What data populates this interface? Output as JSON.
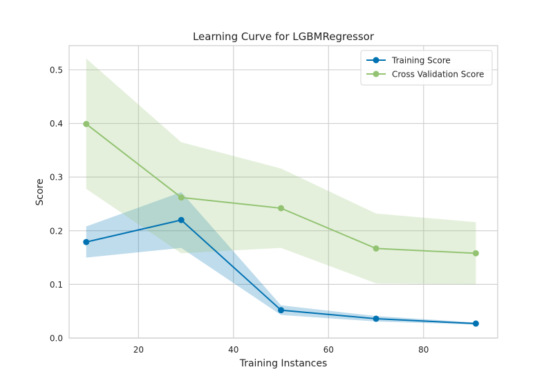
{
  "chart_data": {
    "type": "line",
    "title": "Learning Curve for LGBMRegressor",
    "xlabel": "Training Instances",
    "ylabel": "Score",
    "xlim": [
      5.4,
      95.6
    ],
    "ylim": [
      0.0,
      0.545
    ],
    "xticks": [
      20,
      40,
      60,
      80
    ],
    "yticks": [
      0.0,
      0.1,
      0.2,
      0.3,
      0.4,
      0.5
    ],
    "grid": true,
    "legend_position": "top-right",
    "series": [
      {
        "name": "Training Score",
        "color": "#0072B2",
        "x": [
          9,
          29,
          50,
          70,
          91
        ],
        "values": [
          0.179,
          0.22,
          0.052,
          0.036,
          0.027
        ],
        "band_upper": [
          0.208,
          0.272,
          0.061,
          0.041,
          0.029
        ],
        "band_lower": [
          0.15,
          0.168,
          0.043,
          0.031,
          0.025
        ]
      },
      {
        "name": "Cross Validation Score",
        "color": "#93C372",
        "x": [
          9,
          29,
          50,
          70,
          91
        ],
        "values": [
          0.399,
          0.262,
          0.242,
          0.167,
          0.158
        ],
        "band_upper": [
          0.521,
          0.365,
          0.316,
          0.232,
          0.216
        ],
        "band_lower": [
          0.278,
          0.158,
          0.168,
          0.102,
          0.1
        ]
      }
    ]
  }
}
